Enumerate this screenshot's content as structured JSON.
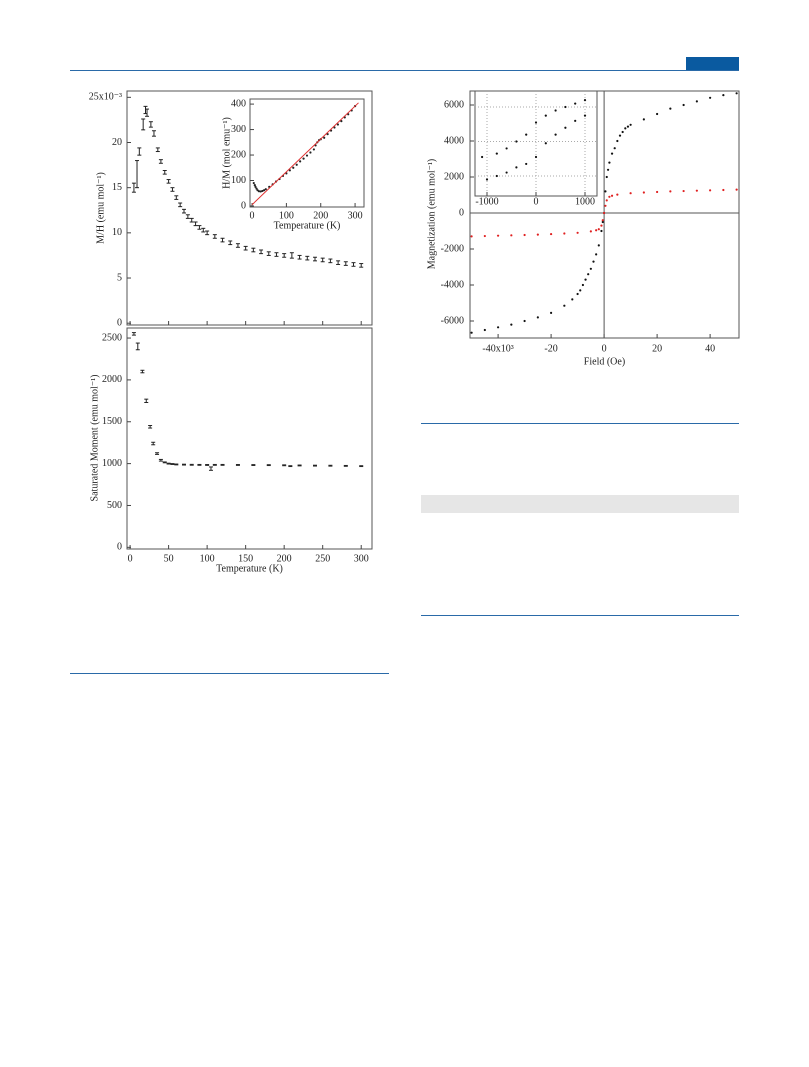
{
  "chart_data": [
    {
      "type": "scatter",
      "y_label": "M/H (emu mol⁻¹)",
      "xlim": [
        -4,
        314
      ],
      "ylim": [
        -0.2,
        25.7
      ],
      "yticks": [
        0,
        5,
        10,
        15,
        {
          "value": 20,
          "label": "20"
        },
        {
          "value": 25,
          "label": "25x10⁻³"
        }
      ],
      "series": [
        {
          "color": "#222222",
          "mode": "errorbar",
          "x": [
            5,
            9,
            12,
            17,
            20,
            22,
            27,
            31,
            36,
            40,
            45,
            50,
            55,
            60,
            65,
            70,
            75,
            80,
            85,
            90,
            95,
            100,
            110,
            120,
            130,
            140,
            150,
            160,
            170,
            180,
            190,
            200,
            210,
            220,
            230,
            240,
            250,
            260,
            270,
            280,
            290,
            300
          ],
          "values": [
            15.0,
            16.5,
            19.0,
            22.0,
            23.6,
            23.3,
            22.0,
            21.0,
            19.2,
            17.9,
            16.7,
            15.7,
            14.8,
            13.9,
            13.1,
            12.4,
            11.8,
            11.4,
            11.0,
            10.6,
            10.3,
            10.0,
            9.6,
            9.2,
            8.9,
            8.6,
            8.3,
            8.1,
            7.9,
            7.7,
            7.6,
            7.5,
            7.5,
            7.3,
            7.2,
            7.1,
            7.0,
            6.9,
            6.7,
            6.6,
            6.5,
            6.4
          ],
          "errors": [
            0.5,
            1.5,
            0.4,
            0.6,
            0.4,
            0.4,
            0.3,
            0.3,
            0.2,
            0.2,
            0.2,
            0.2,
            0.2,
            0.2,
            0.2,
            0.2,
            0.2,
            0.2,
            0.2,
            0.2,
            0.2,
            0.2,
            0.2,
            0.2,
            0.2,
            0.2,
            0.2,
            0.2,
            0.2,
            0.2,
            0.2,
            0.2,
            0.3,
            0.2,
            0.2,
            0.2,
            0.2,
            0.2,
            0.2,
            0.2,
            0.2,
            0.2
          ]
        }
      ]
    },
    {
      "type": "scatter",
      "y_label": "H/M (mol emu⁻¹)",
      "x_label": "Temperature (K)",
      "xlim": [
        -6,
        326
      ],
      "ylim": [
        -4,
        420
      ],
      "xticks": [
        0,
        100,
        200,
        300
      ],
      "yticks": [
        0,
        100,
        200,
        300,
        400
      ],
      "series": [
        {
          "color": "#222222",
          "mode": "markers",
          "x": [
            5,
            8,
            10,
            13,
            16,
            20,
            25,
            30,
            35,
            40,
            50,
            60,
            70,
            80,
            90,
            100,
            110,
            120,
            130,
            140,
            150,
            160,
            170,
            180,
            185,
            190,
            195,
            200,
            210,
            220,
            230,
            240,
            250,
            260,
            270,
            280,
            290,
            300
          ],
          "values": [
            90,
            82,
            75,
            68,
            62,
            58,
            57,
            59,
            62,
            66,
            75,
            85,
            96,
            106,
            118,
            128,
            140,
            150,
            162,
            175,
            186,
            198,
            210,
            222,
            238,
            250,
            258,
            262,
            268,
            282,
            296,
            308,
            320,
            333,
            348,
            360,
            375,
            392
          ]
        },
        {
          "color": "#e03030",
          "mode": "line",
          "x": [
            0,
            310
          ],
          "values": [
            5,
            405
          ]
        }
      ]
    },
    {
      "type": "scatter",
      "y_label": "Saturated Moment (emu mol⁻¹)",
      "x_label": "Temperature (K)",
      "xlim": [
        -4,
        314
      ],
      "ylim": [
        -20,
        2620
      ],
      "xticks": [
        0,
        50,
        100,
        150,
        200,
        250,
        300
      ],
      "yticks": [
        0,
        500,
        1000,
        1500,
        2000,
        2500
      ],
      "series": [
        {
          "color": "#222222",
          "mode": "errorbar",
          "x": [
            5,
            10,
            16,
            21,
            26,
            30,
            35,
            40,
            45,
            50,
            55,
            60,
            70,
            80,
            90,
            100,
            105,
            110,
            120,
            140,
            160,
            180,
            200,
            208,
            220,
            240,
            260,
            280,
            300
          ],
          "values": [
            2550,
            2400,
            2100,
            1750,
            1440,
            1240,
            1120,
            1040,
            1015,
            1000,
            995,
            990,
            988,
            986,
            985,
            984,
            940,
            985,
            985,
            984,
            983,
            982,
            980,
            970,
            978,
            976,
            975,
            973,
            970
          ],
          "errors": [
            15,
            40,
            15,
            20,
            15,
            15,
            10,
            10,
            5,
            5,
            5,
            5,
            5,
            5,
            5,
            5,
            20,
            5,
            5,
            5,
            5,
            5,
            5,
            5,
            5,
            5,
            5,
            5,
            5
          ]
        }
      ]
    },
    {
      "type": "scatter",
      "y_label": "Magnetization (emu mol⁻¹)",
      "x_label": "Field (Oe)",
      "xlim": [
        -50.6,
        50.9
      ],
      "ylim": [
        -6944,
        6778
      ],
      "zero_lines": true,
      "xticks": [
        {
          "value": -40,
          "label": "-40x10³"
        },
        -20,
        0,
        20,
        40
      ],
      "yticks": [
        -6000,
        -4000,
        -2000,
        0,
        2000,
        4000,
        6000
      ],
      "series": [
        {
          "color": "#111111",
          "mode": "markers",
          "x": [
            -50,
            -45,
            -40,
            -35,
            -30,
            -25,
            -20,
            -15,
            -12,
            -10,
            -9,
            -8,
            -7,
            -6,
            -5,
            -4,
            -3,
            -2,
            -1,
            -0.5,
            0,
            0.5,
            1,
            1.5,
            2,
            3,
            4,
            5,
            6,
            7,
            8,
            9,
            10,
            15,
            20,
            25,
            30,
            35,
            40,
            45,
            50
          ],
          "values": [
            -6650,
            -6500,
            -6350,
            -6200,
            -6000,
            -5800,
            -5550,
            -5150,
            -4800,
            -4500,
            -4300,
            -4000,
            -3700,
            -3400,
            -3100,
            -2700,
            -2300,
            -1800,
            -1000,
            -500,
            0,
            1200,
            2000,
            2400,
            2800,
            3300,
            3600,
            4000,
            4300,
            4500,
            4700,
            4800,
            4900,
            5200,
            5500,
            5800,
            6000,
            6200,
            6400,
            6550,
            6650
          ]
        },
        {
          "color": "#e02020",
          "mode": "markers",
          "x": [
            -50,
            -45,
            -40,
            -35,
            -30,
            -25,
            -20,
            -15,
            -10,
            -5,
            -3,
            -2,
            -1,
            -0.5,
            0,
            0.5,
            1,
            2,
            3,
            5,
            10,
            15,
            20,
            25,
            30,
            35,
            40,
            45,
            50
          ],
          "values": [
            -1300,
            -1280,
            -1260,
            -1240,
            -1220,
            -1200,
            -1170,
            -1140,
            -1100,
            -1020,
            -960,
            -900,
            -700,
            -400,
            0,
            400,
            700,
            900,
            960,
            1020,
            1100,
            1140,
            1170,
            1200,
            1220,
            1240,
            1260,
            1280,
            1300
          ]
        }
      ]
    },
    {
      "type": "scatter",
      "xlim": [
        -1245,
        1245
      ],
      "ylim": [
        840,
        6930
      ],
      "grid": true,
      "ytick_labels": false,
      "xticks": [
        -1000,
        0,
        1000
      ],
      "yticks": [
        2000,
        4000,
        6000
      ],
      "series": [
        {
          "color": "#111111",
          "mode": "markers",
          "x": [
            -1100,
            -800,
            -600,
            -400,
            -200,
            0,
            200,
            400,
            600,
            800,
            1000
          ],
          "values": [
            3100,
            3300,
            3600,
            4000,
            4400,
            5100,
            5500,
            5800,
            6000,
            6200,
            6400
          ]
        },
        {
          "color": "#111111",
          "mode": "markers",
          "x": [
            -1000,
            -800,
            -600,
            -400,
            -200,
            0,
            200,
            400,
            600,
            800,
            1000
          ],
          "values": [
            1800,
            2000,
            2200,
            2500,
            2700,
            3100,
            3900,
            4400,
            4800,
            5200,
            5500
          ]
        }
      ]
    }
  ]
}
